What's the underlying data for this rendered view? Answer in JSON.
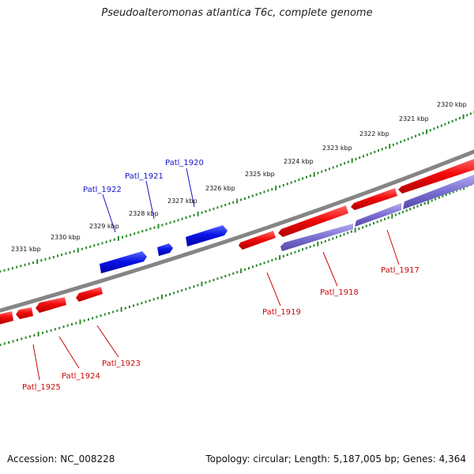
{
  "title": "Pseudoalteromonas atlantica T6c, complete genome",
  "footer": {
    "accession": "Accession: NC_008228",
    "summary": "Topology: circular; Length: 5,187,005 bp; Genes: 4,364"
  },
  "colors": {
    "forward_strand": "#0a14e6",
    "reverse_strand": "#f20a0a",
    "reverse_shadow": "#7a6fd2",
    "backbone": "#858585",
    "tick": "#2a8a2a",
    "forward_label": "#1414c8",
    "reverse_label": "#c80a0a"
  },
  "tick_labels": [
    "2320 kbp",
    "2321 kbp",
    "2322 kbp",
    "2323 kbp",
    "2324 kbp",
    "2325 kbp",
    "2326 kbp",
    "2327 kbp",
    "2328 kbp",
    "2329 kbp",
    "2330 kbp",
    "2331 kbp"
  ],
  "genes": {
    "forward": [
      "Patl_1920",
      "Patl_1921",
      "Patl_1922"
    ],
    "reverse": [
      "Patl_1917",
      "Patl_1918",
      "Patl_1919",
      "Patl_1923",
      "Patl_1924",
      "Patl_1925"
    ]
  }
}
